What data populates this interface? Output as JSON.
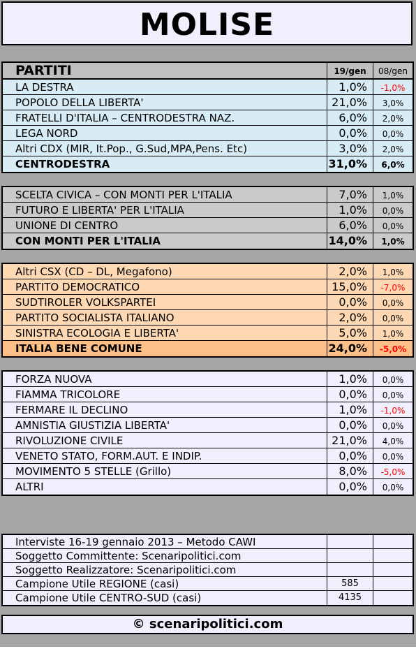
{
  "title": "MOLISE",
  "header": {
    "label": "PARTITI",
    "col_current": "19/gen",
    "col_previous": "08/gen"
  },
  "centrodestra": [
    {
      "name": "LA DESTRA",
      "value": "1,0%",
      "delta": "-1,0%",
      "neg": true
    },
    {
      "name": "POPOLO DELLA LIBERTA'",
      "value": "21,0%",
      "delta": "3,0%"
    },
    {
      "name": "FRATELLI D'ITALIA – CENTRODESTRA NAZ.",
      "value": "6,0%",
      "delta": "2,0%"
    },
    {
      "name": "LEGA NORD",
      "value": "0,0%",
      "delta": "0,0%"
    },
    {
      "name": "Altri CDX (MIR, It.Pop., G.Sud,MPA,Pens. Etc)",
      "value": "3,0%",
      "delta": "2,0%"
    },
    {
      "name": "CENTRODESTRA",
      "value": "31,0%",
      "delta": "6,0%",
      "total": true
    }
  ],
  "monti": [
    {
      "name": "SCELTA CIVICA – CON MONTI PER L'ITALIA",
      "value": "7,0%",
      "delta": "1,0%"
    },
    {
      "name": "FUTURO E LIBERTA' PER L'ITALIA",
      "value": "1,0%",
      "delta": "0,0%"
    },
    {
      "name": "UNIONE DI CENTRO",
      "value": "6,0%",
      "delta": "0,0%"
    },
    {
      "name": "CON MONTI PER L'ITALIA",
      "value": "14,0%",
      "delta": "1,0%",
      "total": true
    }
  ],
  "centrosinistra": [
    {
      "name": "Altri CSX (CD – DL, Megafono)",
      "value": "2,0%",
      "delta": "1,0%"
    },
    {
      "name": "PARTITO DEMOCRATICO",
      "value": "15,0%",
      "delta": "-7,0%",
      "neg": true
    },
    {
      "name": "SUDTIROLER VOLKSPARTEI",
      "value": "0,0%",
      "delta": "0,0%"
    },
    {
      "name": "PARTITO SOCIALISTA ITALIANO",
      "value": "2,0%",
      "delta": "0,0%"
    },
    {
      "name": "SINISTRA ECOLOGIA E LIBERTA'",
      "value": "5,0%",
      "delta": "1,0%"
    },
    {
      "name": "ITALIA BENE COMUNE",
      "value": "24,0%",
      "delta": "-5,0%",
      "total": true,
      "neg": true
    }
  ],
  "altri": [
    {
      "name": "FORZA NUOVA",
      "value": "1,0%",
      "delta": "0,0%"
    },
    {
      "name": "FIAMMA TRICOLORE",
      "value": "0,0%",
      "delta": "0,0%"
    },
    {
      "name": "FERMARE IL DECLINO",
      "value": "1,0%",
      "delta": "-1,0%",
      "neg": true
    },
    {
      "name": "AMNISTIA GIUSTIZIA LIBERTA'",
      "value": "0,0%",
      "delta": "0,0%"
    },
    {
      "name": "RIVOLUZIONE CIVILE",
      "value": "21,0%",
      "delta": "4,0%"
    },
    {
      "name": "VENETO STATO, FORM.AUT. E INDIP.",
      "value": "0,0%",
      "delta": "0,0%"
    },
    {
      "name": "MOVIMENTO 5 STELLE (Grillo)",
      "value": "8,0%",
      "delta": "-5,0%",
      "neg": true
    },
    {
      "name": "ALTRI",
      "value": "0,0%",
      "delta": "0,0%"
    }
  ],
  "info": [
    {
      "name": "Interviste 16-19 gennaio 2013 – Metodo CAWI",
      "value": "",
      "delta": ""
    },
    {
      "name": "Soggetto Committente: Scenaripolitici.com",
      "value": "",
      "delta": ""
    },
    {
      "name": "Soggetto Realizzatore: Scenaripolitici.com",
      "value": "",
      "delta": ""
    },
    {
      "name": "Campione Utile REGIONE (casi)",
      "value": "585",
      "delta": ""
    },
    {
      "name": "Campione Utile CENTRO-SUD (casi)",
      "value": "4135",
      "delta": ""
    }
  ],
  "footer": "© scenaripolitici.com",
  "colors": {
    "negative": "#ff0000",
    "centrodestra_bg": "#d7ecf4",
    "monti_bg": "#cacaca",
    "centrosinistra_bg": "#fdd8b2",
    "altri_bg": "#efeffd"
  }
}
